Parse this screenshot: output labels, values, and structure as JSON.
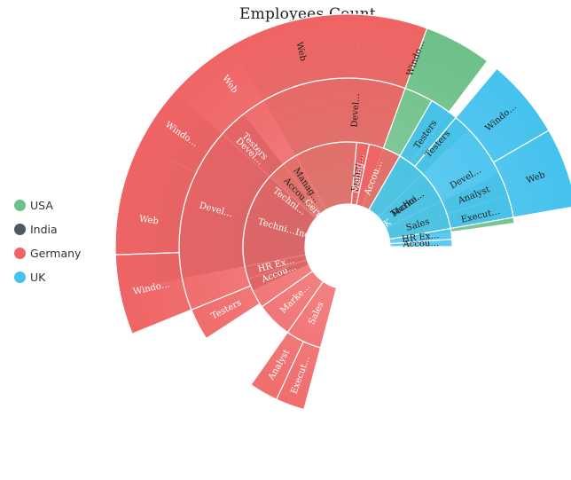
{
  "chart_data": {
    "type": "sunburst",
    "title": "Employees Count",
    "legend": {
      "position": "left",
      "items": [
        "USA",
        "India",
        "Germany",
        "UK"
      ]
    },
    "colors": {
      "USA": "#6cc088",
      "India": "#4c5a66",
      "Germany": "#ef6464",
      "UK": "#45c2ee"
    },
    "nodes": [
      {
        "id": "usa",
        "level": 1,
        "parent": null,
        "label": "USA",
        "country": "USA",
        "start": 30,
        "end": 209,
        "outer": 2
      },
      {
        "id": "usa-sales",
        "level": 2,
        "parent": "usa",
        "label": "Sales",
        "country": "USA",
        "start": 64,
        "end": 82,
        "outer": 2
      },
      {
        "id": "usa-sales-exec",
        "level": 3,
        "parent": "usa-sales",
        "label": "Execut…",
        "country": "USA",
        "start": 72,
        "end": 82,
        "outer": 3
      },
      {
        "id": "usa-sales-analyst",
        "level": 3,
        "parent": "usa-sales",
        "label": "Analyst",
        "country": "USA",
        "start": 64,
        "end": 72,
        "outer": 3
      },
      {
        "id": "usa-marketing",
        "level": 2,
        "parent": "usa",
        "label": "Marke…",
        "country": "USA",
        "start": 46,
        "end": 64,
        "outer": 2
      },
      {
        "id": "usa-tech",
        "level": 2,
        "parent": "usa",
        "label": "Techni…",
        "country": "USA",
        "start": -30,
        "end": 46,
        "outer": 2
      },
      {
        "id": "usa-tech-testers",
        "level": 3,
        "parent": "usa-tech",
        "label": "Testers",
        "country": "USA",
        "start": 37,
        "end": 46,
        "outer": 3
      },
      {
        "id": "usa-tech-dev",
        "level": 3,
        "parent": "usa-tech",
        "label": "Devel…",
        "country": "USA",
        "start": -30,
        "end": 37,
        "outer": 3
      },
      {
        "id": "usa-tech-dev-win",
        "level": 4,
        "parent": "usa-tech-dev",
        "label": "Windo…",
        "country": "USA",
        "start": 3,
        "end": 37,
        "outer": 4
      },
      {
        "id": "usa-tech-dev-web",
        "level": 4,
        "parent": "usa-tech-dev",
        "label": "Web",
        "country": "USA",
        "start": -30,
        "end": 3,
        "outer": 4
      },
      {
        "id": "usa-mgmt",
        "level": 2,
        "parent": "usa",
        "label": "Manag…",
        "country": "USA",
        "start": -38,
        "end": -30,
        "outer": 2
      },
      {
        "id": "usa-accounts",
        "level": 2,
        "parent": "usa",
        "label": "Accou…",
        "country": "USA",
        "start": -48,
        "end": -38,
        "outer": 2
      },
      {
        "id": "india",
        "level": 1,
        "parent": null,
        "label": "India",
        "country": "India",
        "start": -101,
        "end": -48,
        "outer": 2
      },
      {
        "id": "india-tech",
        "level": 2,
        "parent": "india",
        "label": "Techni…",
        "country": "India",
        "start": -101,
        "end": -48,
        "outer": 2
      },
      {
        "id": "india-tech-testers",
        "level": 3,
        "parent": "india-tech",
        "label": "Testers",
        "country": "India",
        "start": -48,
        "end": -38,
        "outer": 3
      },
      {
        "id": "india-tech-dev",
        "level": 3,
        "parent": "india-tech",
        "label": "Devel…",
        "country": "India",
        "start": -101,
        "end": -48,
        "outer": 3
      },
      {
        "id": "india-tech-dev-win",
        "level": 4,
        "parent": "india-tech-dev",
        "label": "Windo…",
        "country": "India",
        "start": -64,
        "end": -48,
        "outer": 4
      },
      {
        "id": "india-tech-dev-web",
        "level": 4,
        "parent": "india-tech-dev",
        "label": "Web",
        "country": "India",
        "start": -101,
        "end": -64,
        "outer": 4
      },
      {
        "id": "india-hr",
        "level": 2,
        "parent": "india",
        "label": "HR Ex…",
        "country": "India",
        "start": -108,
        "end": -101,
        "outer": 2
      },
      {
        "id": "india-accounts",
        "level": 2,
        "parent": "india",
        "label": "Accou…",
        "country": "India",
        "start": -115,
        "end": -108,
        "outer": 2
      },
      {
        "id": "germany",
        "level": 1,
        "parent": null,
        "label": "Germa…",
        "country": "Germany",
        "start": -115,
        "end": 30,
        "outer": 2
      },
      {
        "id": "germany-sales",
        "level": 2,
        "parent": "germany",
        "label": "Sales",
        "country": "Germany",
        "start": -165,
        "end": -145,
        "outer": 2
      },
      {
        "id": "germany-sales-exec",
        "level": 3,
        "parent": "germany-sales",
        "label": "Execut…",
        "country": "Germany",
        "start": -165,
        "end": -155,
        "outer": 3
      },
      {
        "id": "germany-sales-analyst",
        "level": 3,
        "parent": "germany-sales",
        "label": "Analyst",
        "country": "Germany",
        "start": -155,
        "end": -145,
        "outer": 3
      },
      {
        "id": "germany-marketing",
        "level": 2,
        "parent": "germany",
        "label": "Marke…",
        "country": "Germany",
        "start": -145,
        "end": -125,
        "outer": 2
      },
      {
        "id": "germany-tech",
        "level": 2,
        "parent": "germany",
        "label": "Techni…",
        "country": "Germany",
        "start": -125,
        "end": 20,
        "outer": 2
      },
      {
        "id": "germany-tech-testers",
        "level": 3,
        "parent": "germany-tech",
        "label": "Testers",
        "country": "Germany",
        "start": -123,
        "end": -112,
        "outer": 3
      },
      {
        "id": "germany-tech-dev",
        "level": 3,
        "parent": "germany-tech",
        "label": "Devel…",
        "country": "Germany",
        "start": -112,
        "end": 20,
        "outer": 3
      },
      {
        "id": "germany-tech-dev-win",
        "level": 4,
        "parent": "germany-tech-dev",
        "label": "Windo…",
        "country": "Germany",
        "start": -112,
        "end": -92,
        "outer": 4
      },
      {
        "id": "germany-tech-dev-web",
        "level": 4,
        "parent": "germany-tech-dev",
        "label": "Web",
        "country": "Germany",
        "start": -92,
        "end": 20,
        "outer": 4
      },
      {
        "id": "germany-mgmt",
        "level": 2,
        "parent": "germany",
        "label": "Manag…",
        "country": "Germany",
        "start": 5,
        "end": 12,
        "outer": 2
      },
      {
        "id": "germany-accounts",
        "level": 2,
        "parent": "germany",
        "label": "Accou…",
        "country": "Germany",
        "start": 12,
        "end": 30,
        "outer": 2
      },
      {
        "id": "uk",
        "level": 1,
        "parent": null,
        "label": "UK",
        "country": "UK",
        "start": 30,
        "end": 90,
        "outer": 2
      },
      {
        "id": "uk-tech",
        "level": 2,
        "parent": "uk",
        "label": "Techni…",
        "country": "UK",
        "start": 30,
        "end": 80,
        "outer": 2
      },
      {
        "id": "uk-tech-testers",
        "level": 3,
        "parent": "uk-tech",
        "label": "Testers",
        "country": "UK",
        "start": 30,
        "end": 40,
        "outer": 3
      },
      {
        "id": "uk-tech-dev",
        "level": 3,
        "parent": "uk-tech",
        "label": "Devel…",
        "country": "UK",
        "start": 40,
        "end": 80,
        "outer": 3
      },
      {
        "id": "uk-tech-dev-win",
        "level": 4,
        "parent": "uk-tech-dev",
        "label": "Windo…",
        "country": "UK",
        "start": 40,
        "end": 60,
        "outer": 4
      },
      {
        "id": "uk-tech-dev-web",
        "level": 4,
        "parent": "uk-tech-dev",
        "label": "Web",
        "country": "UK",
        "start": 60,
        "end": 80,
        "outer": 4
      },
      {
        "id": "uk-hr",
        "level": 2,
        "parent": "uk",
        "label": "HR Ex…",
        "country": "UK",
        "start": 80,
        "end": 86,
        "outer": 2
      },
      {
        "id": "uk-accounts",
        "level": 2,
        "parent": "uk",
        "label": "Accou…",
        "country": "UK",
        "start": 86,
        "end": 90,
        "outer": 2
      }
    ]
  }
}
